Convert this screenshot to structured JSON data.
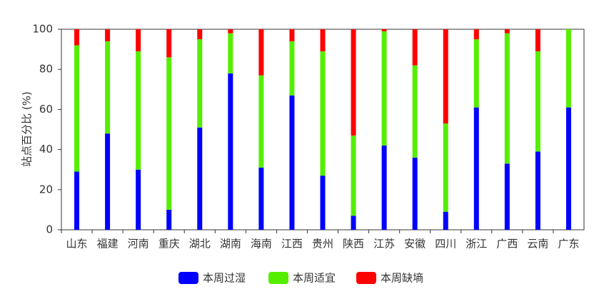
{
  "chart_data": {
    "type": "stacked_bar",
    "y_label": "站点百分比 (%)",
    "categories": [
      "山东",
      "福建",
      "河南",
      "重庆",
      "湖北",
      "湖南",
      "海南",
      "江西",
      "贵州",
      "陕西",
      "江苏",
      "安徽",
      "四川",
      "浙江",
      "广西",
      "云南",
      "广东"
    ],
    "series": [
      {
        "name": "本周过湿",
        "color": "#0000ff",
        "values": [
          29,
          48,
          30,
          10,
          51,
          78,
          31,
          67,
          27,
          7,
          42,
          36,
          9,
          61,
          33,
          39,
          61
        ]
      },
      {
        "name": "本周适宜",
        "color": "#55ee00",
        "values": [
          63,
          46,
          59,
          76,
          44,
          20,
          46,
          27,
          62,
          40,
          57,
          46,
          44,
          34,
          65,
          50,
          39
        ]
      },
      {
        "name": "本周缺墒",
        "color": "#ff0000",
        "values": [
          8,
          6,
          11,
          14,
          5,
          2,
          23,
          6,
          11,
          53,
          1,
          18,
          47,
          5,
          2,
          11,
          0
        ]
      }
    ],
    "ylim": [
      0,
      100
    ],
    "yticks": [
      0,
      20,
      40,
      60,
      80,
      100
    ]
  }
}
